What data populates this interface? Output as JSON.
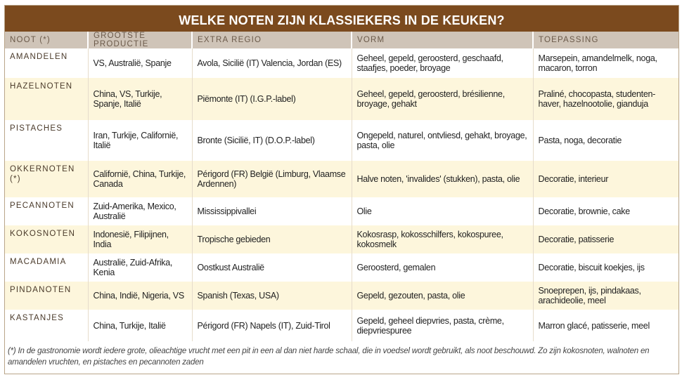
{
  "title": "WELKE NOTEN ZIJN KLASSIEKERS IN DE KEUKEN?",
  "columns": [
    "NOOT (*)",
    "GROOTSTE PRODUCTIE",
    "EXTRA REGIO",
    "VORM",
    "TOEPASSING"
  ],
  "rows": [
    {
      "noot": "AMANDELEN",
      "productie": "VS, Australië, Spanje",
      "regio": "Avola, Sicilië (IT) Valencia, Jordan (ES)",
      "vorm": "Geheel, gepeld, geroosterd, geschaafd, staafjes, poeder, broyage",
      "toepassing": "Marsepein, amandelmelk, noga, macaron, torron"
    },
    {
      "noot": "HAZELNOTEN",
      "productie": "China, VS, Turkije, Spanje, Italië",
      "regio": "Piëmonte (IT) (I.G.P.-label)",
      "vorm": "Geheel, gepeld, geroosterd, brésilienne, broyage, gehakt",
      "toepassing": "Praliné, chocopasta, studenten-haver, hazelnootolie, gianduja"
    },
    {
      "noot": "PISTACHES",
      "productie": "Iran, Turkije, Californië, Italië",
      "regio": "Bronte (Sicilië, IT) (D.O.P.-label)",
      "vorm": "Ongepeld, naturel, ontvliesd, gehakt, broyage, pasta, olie",
      "toepassing": "Pasta, noga, decoratie"
    },
    {
      "noot": "OKKERNOTEN (*)",
      "productie": "Californië, China, Turkije, Canada",
      "regio": "Périgord (FR) België (Limburg, Vlaamse Ardennen)",
      "vorm": "Halve noten, 'invalides' (stukken), pasta, olie",
      "toepassing": "Decoratie, interieur"
    },
    {
      "noot": "PECANNOTEN",
      "productie": "Zuid-Amerika, Mexico, Australië",
      "regio": "Mississippivallei",
      "vorm": "Olie",
      "toepassing": "Decoratie, brownie, cake"
    },
    {
      "noot": "KOKOSNOTEN",
      "productie": "Indonesië, Filipijnen, India",
      "regio": "Tropische gebieden",
      "vorm": "Kokosrasp, kokosschilfers, kokospuree, kokosmelk",
      "toepassing": "Decoratie, patisserie"
    },
    {
      "noot": "MACADAMIA",
      "productie": "Australië, Zuid-Afrika, Kenia",
      "regio": "Oostkust Australië",
      "vorm": "Geroosterd, gemalen",
      "toepassing": "Decoratie, biscuit koekjes, ijs"
    },
    {
      "noot": "PINDANOTEN",
      "productie": "China, Indië, Nigeria, VS",
      "regio": "Spanish (Texas, USA)",
      "vorm": "Gepeld, gezouten, pasta, olie",
      "toepassing": "Snoeprepen, ijs, pindakaas, arachideolie, meel"
    },
    {
      "noot": "KASTANJES",
      "productie": "China, Turkije, Italië",
      "regio": "Périgord (FR) Napels (IT), Zuid-Tirol",
      "vorm": "Gepeld, geheel diepvries, pasta, crème, diepvriespuree",
      "toepassing": "Marron glacé, patisserie, meel"
    }
  ],
  "footnote": "(*) In de gastronomie wordt iedere grote, olieachtige vrucht met een pit in een al dan niet harde schaal, die in voedsel wordt gebruikt, als noot beschouwd. Zo zijn kokosnoten, walnoten en amandelen vruchten, en pistaches en pecannoten zaden",
  "colors": {
    "title_bg": "#7b4a1e",
    "header_bg": "#cfc4b8",
    "alt_row": "#fdf6dc"
  }
}
